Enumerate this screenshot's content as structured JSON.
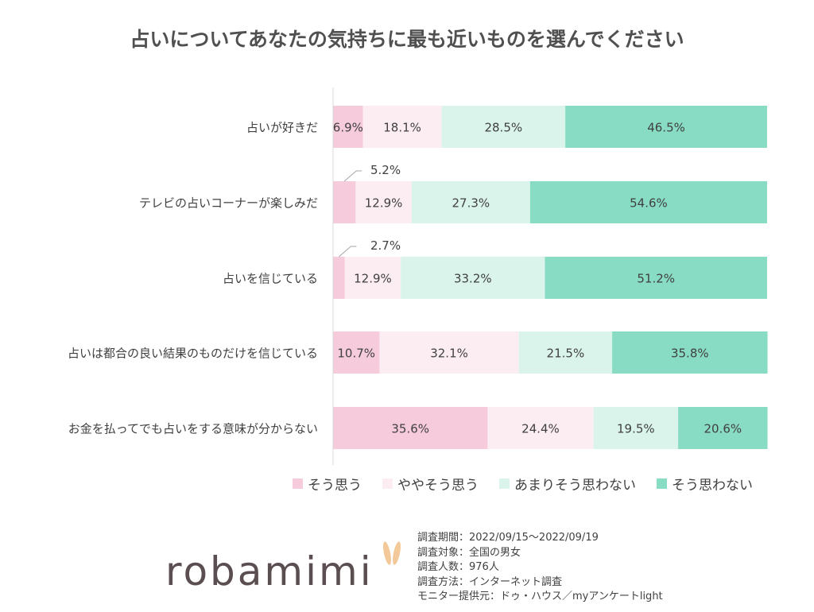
{
  "chart_data": {
    "type": "bar",
    "stacked": true,
    "orientation": "horizontal",
    "title": "占いについてあなたの気持ちに最も近いものを選んでください",
    "categories": [
      "占いが好きだ",
      "テレビの占いコーナーが楽しみだ",
      "占いを信じている",
      "占いは都合の良い結果のものだけを信じている",
      "お金を払ってでも占いをする意味が分からない"
    ],
    "series": [
      {
        "name": "そう思う",
        "color": "#f6cbdc",
        "values": [
          6.9,
          5.2,
          2.7,
          10.7,
          35.6
        ]
      },
      {
        "name": "ややそう思う",
        "color": "#fcedf2",
        "values": [
          18.1,
          12.9,
          12.9,
          32.1,
          24.4
        ]
      },
      {
        "name": "あまりそう思わない",
        "color": "#daf4eb",
        "values": [
          28.5,
          27.3,
          33.2,
          21.5,
          19.5
        ]
      },
      {
        "name": "そう思わない",
        "color": "#89dcc4",
        "values": [
          46.5,
          54.6,
          51.2,
          35.8,
          20.6
        ]
      }
    ],
    "xlim": [
      0,
      100
    ],
    "legend_position": "bottom"
  },
  "footer": {
    "lines": [
      "調査期間：2022/09/15～2022/09/19",
      "調査対象：全国の男女",
      "調査人数：976人",
      "調査方法：インターネット調査",
      "モニター提供元：ドゥ・ハウス／myアンケートlight"
    ]
  },
  "logo": "robamimi"
}
